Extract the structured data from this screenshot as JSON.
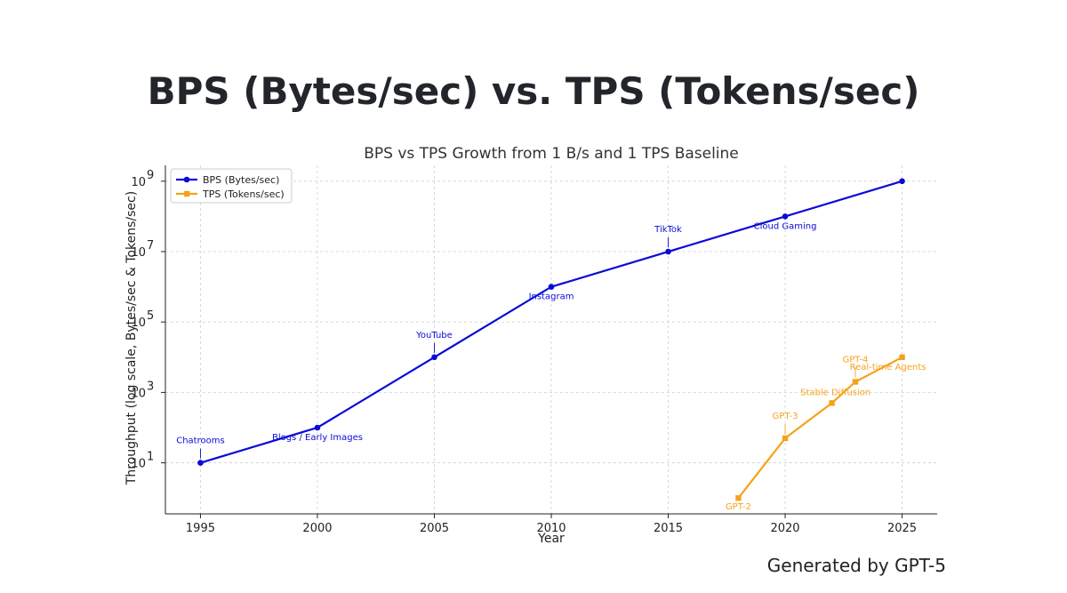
{
  "headline": "BPS (Bytes/sec) vs. TPS (Tokens/sec)",
  "credit": "Generated by GPT-5",
  "colors": {
    "bps": "#0a0ad6",
    "tps": "#f5a21b",
    "grid": "#d0d0d0",
    "axis": "#222222"
  },
  "chart_data": {
    "type": "line",
    "title": "BPS vs TPS Growth from 1 B/s and 1 TPS Baseline",
    "xlabel": "Year",
    "ylabel": "Throughput (log scale, Bytes/sec & Tokens/sec)",
    "yscale": "log",
    "xlim": [
      1993.5,
      2026.5
    ],
    "ylim_log10": [
      -0.45,
      9.45
    ],
    "x_ticks": [
      1995,
      2000,
      2005,
      2010,
      2015,
      2020,
      2025
    ],
    "x_tick_labels": [
      "1995",
      "2000",
      "2005",
      "2010",
      "2015",
      "2020",
      "2025"
    ],
    "y_ticks": [
      {
        "base": "10",
        "exp": "1",
        "log10": 1
      },
      {
        "base": "10",
        "exp": "3",
        "log10": 3
      },
      {
        "base": "10",
        "exp": "5",
        "log10": 5
      },
      {
        "base": "10",
        "exp": "7",
        "log10": 7
      },
      {
        "base": "10",
        "exp": "9",
        "log10": 9
      }
    ],
    "legend_position": "top-left",
    "series": [
      {
        "name": "BPS (Bytes/sec)",
        "marker": "circle",
        "x": [
          1995,
          2000,
          2005,
          2010,
          2015,
          2020,
          2025
        ],
        "y": [
          10,
          100,
          10000,
          1000000,
          10000000,
          100000000,
          1000000000
        ],
        "labels": [
          "Chatrooms",
          "Blogs / Early Images",
          "YouTube",
          "Instagram",
          "TikTok",
          "Cloud Gaming",
          ""
        ]
      },
      {
        "name": "TPS (Tokens/sec)",
        "marker": "square",
        "x": [
          2018,
          2020,
          2022,
          2023,
          2025
        ],
        "y": [
          1,
          50,
          500,
          2000,
          10000
        ],
        "labels": [
          "GPT-2",
          "GPT-3",
          "Stable Diffusion",
          "GPT-4",
          "Real-time Agents"
        ]
      }
    ]
  }
}
